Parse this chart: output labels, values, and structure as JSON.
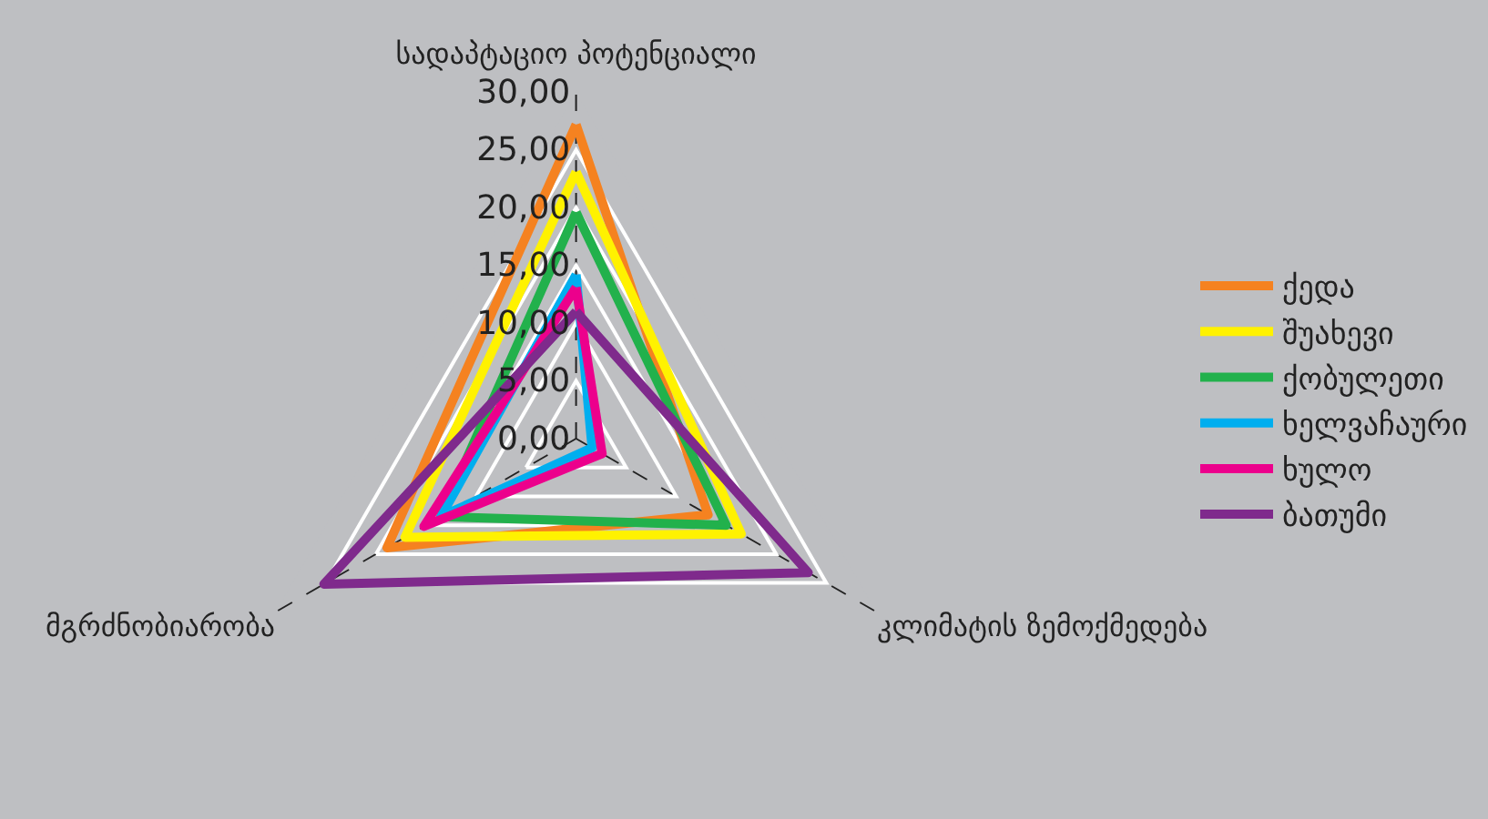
{
  "chart_data": {
    "type": "radar",
    "categories": [
      "სადაპტაციო პოტენციალი",
      "კლიმატის ზემოქმედება",
      "მგრძნობიარობა"
    ],
    "series": [
      {
        "name": "ქედა",
        "color": "#f58220",
        "values": [
          27.2,
          13.2,
          18.9
        ]
      },
      {
        "name": "შუახევი",
        "color": "#fff200",
        "values": [
          23.1,
          16.5,
          17.1
        ]
      },
      {
        "name": "ქობულეთი",
        "color": "#22b14c",
        "values": [
          19.6,
          15.0,
          13.5
        ]
      },
      {
        "name": "ხელვაჩაური",
        "color": "#00aeef",
        "values": [
          14.2,
          1.6,
          13.5
        ]
      },
      {
        "name": "ხულო",
        "color": "#ec008c",
        "values": [
          13.1,
          2.6,
          15.2
        ]
      },
      {
        "name": "ბათუმი",
        "color": "#7f2a8c",
        "values": [
          11.0,
          23.2,
          25.2
        ]
      }
    ],
    "ylim": [
      0,
      30
    ],
    "yticks": [
      {
        "value": 0,
        "label": "0,00"
      },
      {
        "value": 5,
        "label": "5,00"
      },
      {
        "value": 10,
        "label": "10,00"
      },
      {
        "value": 15,
        "label": "15,00"
      },
      {
        "value": 20,
        "label": "20,00"
      },
      {
        "value": 25,
        "label": "25,00"
      },
      {
        "value": 30,
        "label": "30,00"
      }
    ],
    "grid": true,
    "legend": "right",
    "marker": "none",
    "line_style": "solid"
  }
}
